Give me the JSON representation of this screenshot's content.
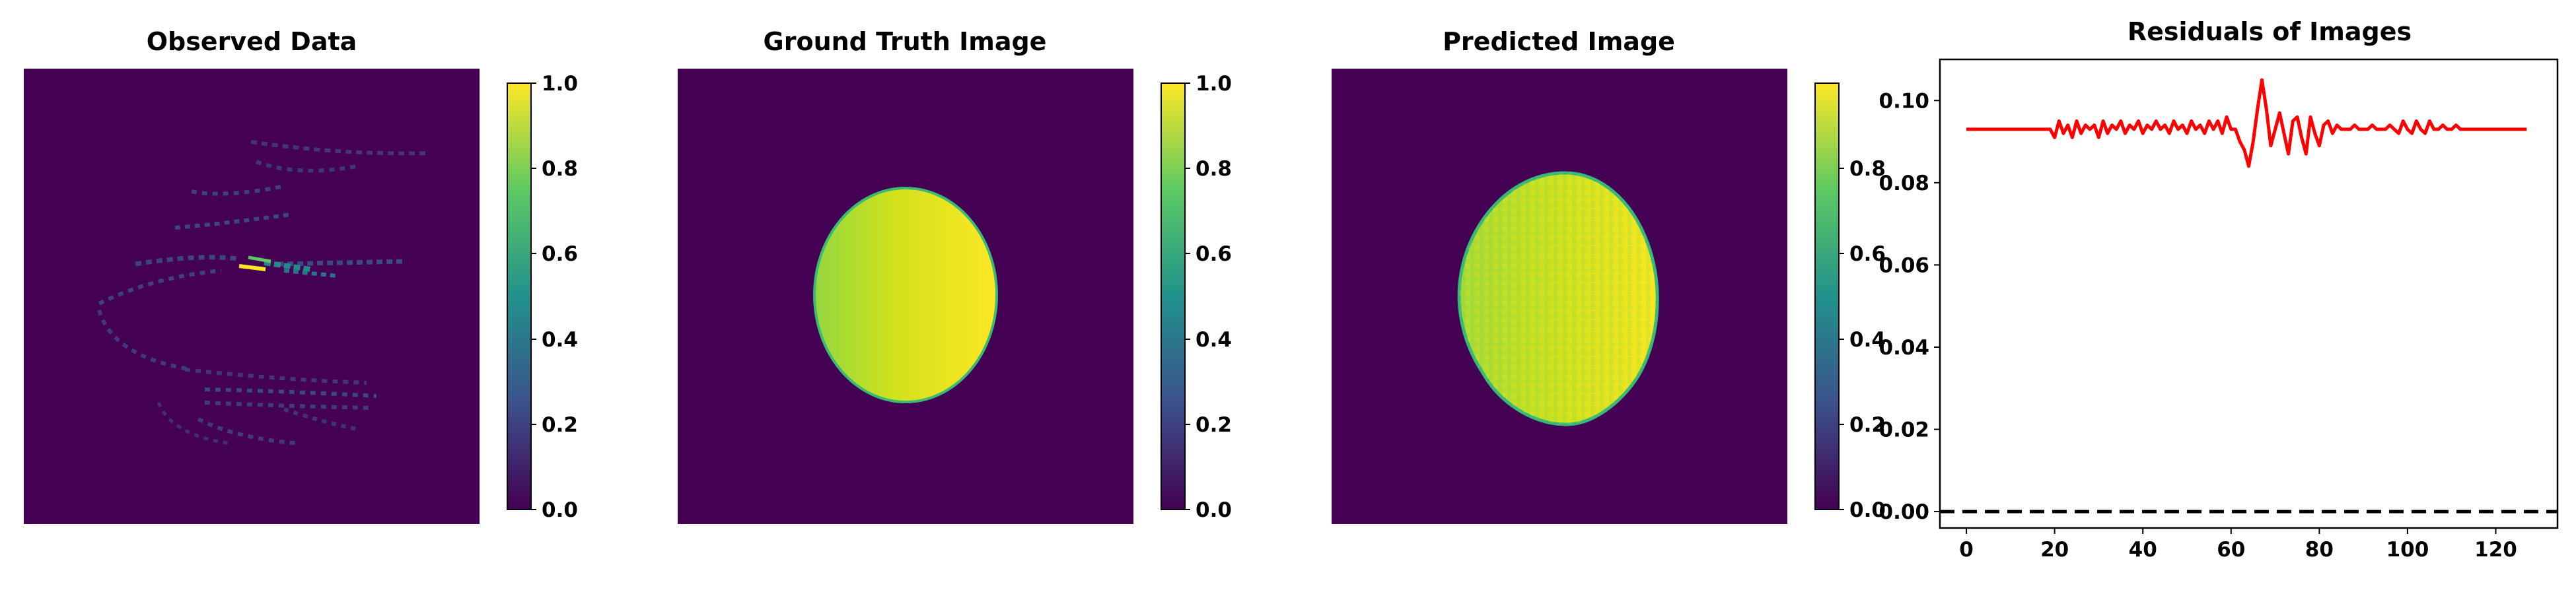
{
  "figure": {
    "background": "#ffffff",
    "colormap": "viridis",
    "colormap_stops": [
      "#440154",
      "#3b528b",
      "#21918c",
      "#5ec962",
      "#fde725"
    ]
  },
  "chart_data": [
    {
      "type": "heatmap",
      "title": "Observed Data",
      "colorbar": {
        "range": [
          0.0,
          1.0
        ],
        "ticks": [
          "0.0",
          "0.2",
          "0.4",
          "0.6",
          "0.8",
          "1.0"
        ]
      },
      "content": "sparse spiral sampling pattern, mostly 0 with faint streaks and a bright streak near center",
      "bright_values": [
        0.1,
        0.15,
        0.2,
        0.55,
        1.0
      ]
    },
    {
      "type": "heatmap",
      "title": "Ground Truth Image",
      "colorbar": {
        "range": [
          0.0,
          1.0
        ],
        "ticks": [
          "0.0",
          "0.2",
          "0.4",
          "0.6",
          "0.8",
          "1.0"
        ]
      },
      "content": "uniform ellipse on zero background",
      "ellipse_value_range": [
        0.8,
        0.97
      ]
    },
    {
      "type": "heatmap",
      "title": "Predicted Image",
      "colorbar": {
        "range": [
          0.0,
          1.0
        ],
        "ticks": [
          "0.0",
          "0.2",
          "0.4",
          "0.6",
          "0.8"
        ]
      },
      "content": "noisy reconstruction of the ellipse",
      "ellipse_value_range": [
        0.82,
        0.97
      ]
    },
    {
      "type": "line",
      "title": "Residuals of Images",
      "xlim": [
        -6,
        134
      ],
      "ylim": [
        -0.004,
        0.11
      ],
      "xticks": [
        "0",
        "20",
        "40",
        "60",
        "80",
        "100",
        "120"
      ],
      "yticks": [
        "0.00",
        "0.02",
        "0.04",
        "0.06",
        "0.08",
        "0.10"
      ],
      "reference_line": {
        "y": 0.0,
        "style": "dashed",
        "color": "#000000"
      },
      "series": [
        {
          "color": "#ff0000",
          "x": [
            0,
            1,
            2,
            3,
            4,
            5,
            6,
            7,
            8,
            9,
            10,
            11,
            12,
            13,
            14,
            15,
            16,
            17,
            18,
            19,
            20,
            21,
            22,
            23,
            24,
            25,
            26,
            27,
            28,
            29,
            30,
            31,
            32,
            33,
            34,
            35,
            36,
            37,
            38,
            39,
            40,
            41,
            42,
            43,
            44,
            45,
            46,
            47,
            48,
            49,
            50,
            51,
            52,
            53,
            54,
            55,
            56,
            57,
            58,
            59,
            60,
            61,
            62,
            63,
            64,
            65,
            66,
            67,
            68,
            69,
            70,
            71,
            72,
            73,
            74,
            75,
            76,
            77,
            78,
            79,
            80,
            81,
            82,
            83,
            84,
            85,
            86,
            87,
            88,
            89,
            90,
            91,
            92,
            93,
            94,
            95,
            96,
            97,
            98,
            99,
            100,
            101,
            102,
            103,
            104,
            105,
            106,
            107,
            108,
            109,
            110,
            111,
            112,
            113,
            114,
            115,
            116,
            117,
            118,
            119,
            120,
            121,
            122,
            123,
            124,
            125,
            126,
            127
          ],
          "y": [
            0.093,
            0.093,
            0.093,
            0.093,
            0.093,
            0.093,
            0.093,
            0.093,
            0.093,
            0.093,
            0.093,
            0.093,
            0.093,
            0.093,
            0.093,
            0.093,
            0.093,
            0.093,
            0.093,
            0.093,
            0.091,
            0.095,
            0.092,
            0.094,
            0.091,
            0.095,
            0.092,
            0.094,
            0.093,
            0.094,
            0.091,
            0.095,
            0.092,
            0.094,
            0.093,
            0.095,
            0.092,
            0.094,
            0.093,
            0.095,
            0.092,
            0.094,
            0.093,
            0.095,
            0.093,
            0.094,
            0.092,
            0.095,
            0.093,
            0.094,
            0.092,
            0.095,
            0.093,
            0.094,
            0.092,
            0.095,
            0.093,
            0.095,
            0.092,
            0.096,
            0.093,
            0.093,
            0.09,
            0.088,
            0.084,
            0.09,
            0.098,
            0.105,
            0.098,
            0.089,
            0.093,
            0.097,
            0.092,
            0.087,
            0.095,
            0.096,
            0.091,
            0.087,
            0.096,
            0.092,
            0.089,
            0.094,
            0.095,
            0.092,
            0.094,
            0.093,
            0.093,
            0.093,
            0.094,
            0.093,
            0.093,
            0.093,
            0.094,
            0.093,
            0.093,
            0.093,
            0.094,
            0.093,
            0.092,
            0.095,
            0.093,
            0.092,
            0.095,
            0.093,
            0.092,
            0.095,
            0.093,
            0.093,
            0.094,
            0.093,
            0.093,
            0.094,
            0.093,
            0.093,
            0.093,
            0.093,
            0.093,
            0.093,
            0.093,
            0.093,
            0.093,
            0.093,
            0.093,
            0.093,
            0.093,
            0.093,
            0.093,
            0.093
          ]
        }
      ]
    }
  ]
}
